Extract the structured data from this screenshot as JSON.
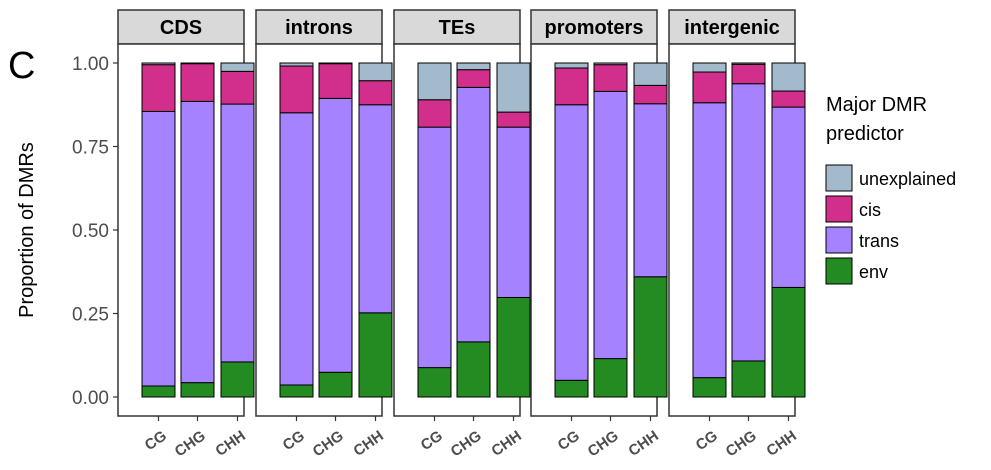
{
  "figure_tag": "C",
  "chart_data": {
    "type": "bar",
    "stacked": true,
    "ylabel": "Proportion of DMRs",
    "ylim": [
      0,
      1
    ],
    "yticks": [
      0,
      0.25,
      0.5,
      0.75,
      1.0
    ],
    "ytick_labels": [
      "0.00",
      "0.25",
      "0.50",
      "0.75",
      "1.00"
    ],
    "categories": [
      "CG",
      "CHG",
      "CHH"
    ],
    "legend": {
      "title_lines": [
        "Major DMR",
        "predictor"
      ],
      "position": "right"
    },
    "series_styles": [
      {
        "name": "unexplained",
        "color": "#a3b9cc"
      },
      {
        "name": "cis",
        "color": "#d22f8c"
      },
      {
        "name": "trans",
        "color": "#a582ff"
      },
      {
        "name": "env",
        "color": "#238b21"
      }
    ],
    "panels": [
      {
        "title": "CDS",
        "series": [
          {
            "name": "env",
            "values": [
              0.033,
              0.043,
              0.105
            ]
          },
          {
            "name": "trans",
            "values": [
              0.822,
              0.842,
              0.772
            ]
          },
          {
            "name": "cis",
            "values": [
              0.14,
              0.113,
              0.098
            ]
          },
          {
            "name": "unexplained",
            "values": [
              0.005,
              0.002,
              0.025
            ]
          }
        ]
      },
      {
        "title": "introns",
        "series": [
          {
            "name": "env",
            "values": [
              0.036,
              0.074,
              0.252
            ]
          },
          {
            "name": "trans",
            "values": [
              0.815,
              0.82,
              0.623
            ]
          },
          {
            "name": "cis",
            "values": [
              0.14,
              0.104,
              0.072
            ]
          },
          {
            "name": "unexplained",
            "values": [
              0.009,
              0.002,
              0.053
            ]
          }
        ]
      },
      {
        "title": "TEs",
        "series": [
          {
            "name": "env",
            "values": [
              0.088,
              0.165,
              0.298
            ]
          },
          {
            "name": "trans",
            "values": [
              0.72,
              0.762,
              0.51
            ]
          },
          {
            "name": "cis",
            "values": [
              0.082,
              0.053,
              0.045
            ]
          },
          {
            "name": "unexplained",
            "values": [
              0.11,
              0.02,
              0.147
            ]
          }
        ]
      },
      {
        "title": "promoters",
        "series": [
          {
            "name": "env",
            "values": [
              0.05,
              0.115,
              0.36
            ]
          },
          {
            "name": "trans",
            "values": [
              0.825,
              0.8,
              0.518
            ]
          },
          {
            "name": "cis",
            "values": [
              0.11,
              0.08,
              0.055
            ]
          },
          {
            "name": "unexplained",
            "values": [
              0.015,
              0.005,
              0.067
            ]
          }
        ]
      },
      {
        "title": "intergenic",
        "series": [
          {
            "name": "env",
            "values": [
              0.058,
              0.108,
              0.328
            ]
          },
          {
            "name": "trans",
            "values": [
              0.823,
              0.83,
              0.54
            ]
          },
          {
            "name": "cis",
            "values": [
              0.092,
              0.058,
              0.048
            ]
          },
          {
            "name": "unexplained",
            "values": [
              0.027,
              0.004,
              0.084
            ]
          }
        ]
      }
    ]
  }
}
